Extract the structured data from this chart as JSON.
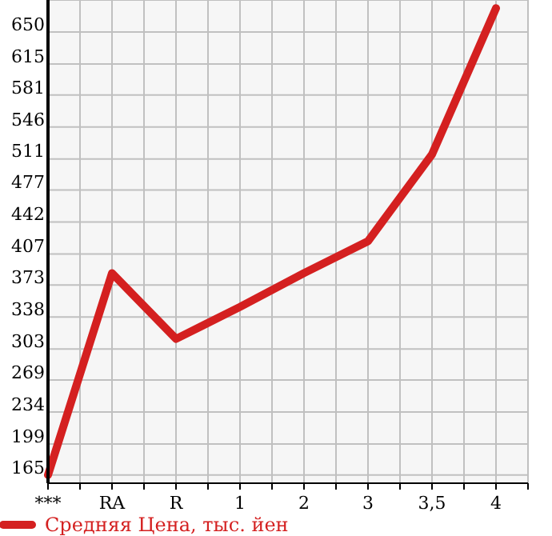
{
  "chart_data": {
    "type": "line",
    "categories": [
      "***",
      "RA",
      "R",
      "1",
      "2",
      "3",
      "3,5",
      "4"
    ],
    "series": [
      {
        "name": "Средняя Цена, тыс. йен",
        "color": "#d42020",
        "values": [
          165,
          386,
          314,
          349,
          386,
          421,
          516,
          676
        ]
      }
    ],
    "ylim": [
      156,
      685
    ],
    "yticks": [
      165,
      199,
      234,
      269,
      303,
      338,
      373,
      407,
      442,
      477,
      511,
      546,
      581,
      615,
      650
    ],
    "grid": true,
    "legend": "bottom left",
    "marker": "none",
    "line_style": "solid"
  }
}
